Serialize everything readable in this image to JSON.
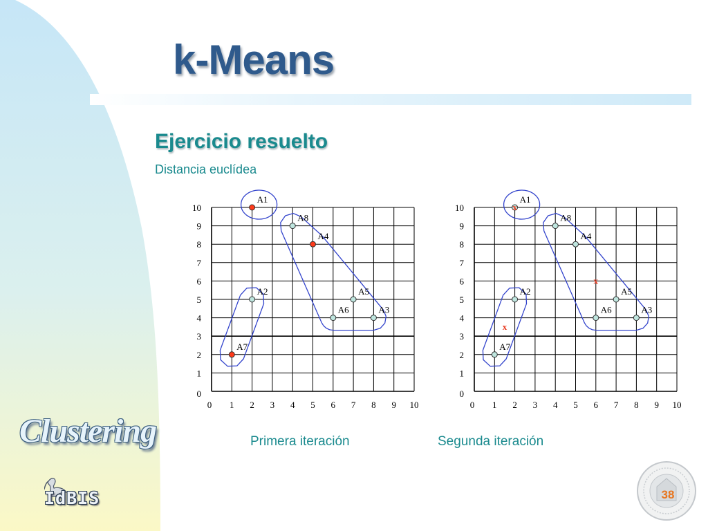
{
  "slide": {
    "title": "k-Means",
    "subtitle": "Ejercicio resuelto",
    "subsubtitle": "Distancia euclídea",
    "sidebar_word": "Clustering",
    "logo_text": "IdBIS",
    "page_number": "38"
  },
  "chart_data": [
    {
      "type": "scatter",
      "caption": "Primera iteración",
      "xlim": [
        0,
        10
      ],
      "ylim": [
        0,
        10
      ],
      "x_ticks": [
        "0",
        "1",
        "2",
        "3",
        "4",
        "5",
        "6",
        "7",
        "8",
        "9",
        "10"
      ],
      "y_ticks": [
        "0",
        "1",
        "2",
        "3",
        "4",
        "5",
        "6",
        "7",
        "8",
        "9",
        "10"
      ],
      "grid": true,
      "points": [
        {
          "label": "A1",
          "x": 2,
          "y": 10,
          "centroid": true
        },
        {
          "label": "A2",
          "x": 2,
          "y": 5,
          "centroid": false
        },
        {
          "label": "A3",
          "x": 8,
          "y": 4,
          "centroid": false
        },
        {
          "label": "A4",
          "x": 5,
          "y": 8,
          "centroid": true
        },
        {
          "label": "A5",
          "x": 7,
          "y": 5,
          "centroid": false
        },
        {
          "label": "A6",
          "x": 6,
          "y": 4,
          "centroid": false
        },
        {
          "label": "A7",
          "x": 1,
          "y": 2,
          "centroid": true
        },
        {
          "label": "A8",
          "x": 4,
          "y": 9,
          "centroid": false
        }
      ],
      "clusters": [
        [
          "A1"
        ],
        [
          "A3",
          "A4",
          "A5",
          "A6",
          "A8"
        ],
        [
          "A2",
          "A7"
        ]
      ],
      "markers": []
    },
    {
      "type": "scatter",
      "caption": "Segunda iteración",
      "xlim": [
        0,
        10
      ],
      "ylim": [
        0,
        10
      ],
      "x_ticks": [
        "0",
        "1",
        "2",
        "3",
        "4",
        "5",
        "6",
        "7",
        "8",
        "9",
        "10"
      ],
      "y_ticks": [
        "0",
        "1",
        "2",
        "3",
        "4",
        "5",
        "6",
        "7",
        "8",
        "9",
        "10"
      ],
      "grid": true,
      "points": [
        {
          "label": "A1",
          "x": 2,
          "y": 10,
          "centroid": false
        },
        {
          "label": "A2",
          "x": 2,
          "y": 5,
          "centroid": false
        },
        {
          "label": "A3",
          "x": 8,
          "y": 4,
          "centroid": false
        },
        {
          "label": "A4",
          "x": 5,
          "y": 8,
          "centroid": false
        },
        {
          "label": "A5",
          "x": 7,
          "y": 5,
          "centroid": false
        },
        {
          "label": "A6",
          "x": 6,
          "y": 4,
          "centroid": false
        },
        {
          "label": "A7",
          "x": 1,
          "y": 2,
          "centroid": false
        },
        {
          "label": "A8",
          "x": 4,
          "y": 9,
          "centroid": false
        }
      ],
      "clusters": [
        [
          "A1"
        ],
        [
          "A3",
          "A4",
          "A5",
          "A6",
          "A8"
        ],
        [
          "A2",
          "A7"
        ]
      ],
      "markers": [
        {
          "text": "x",
          "x": 2,
          "y": 10
        },
        {
          "text": "x",
          "x": 6,
          "y": 6
        },
        {
          "text": "x",
          "x": 1.5,
          "y": 3.5
        }
      ]
    }
  ],
  "colors": {
    "point_fill": "#bfe6df",
    "centroid_fill": "#ff3a1a",
    "marker": "#e8391f",
    "cluster_outline": "#3344cc",
    "grid": "#000000"
  }
}
